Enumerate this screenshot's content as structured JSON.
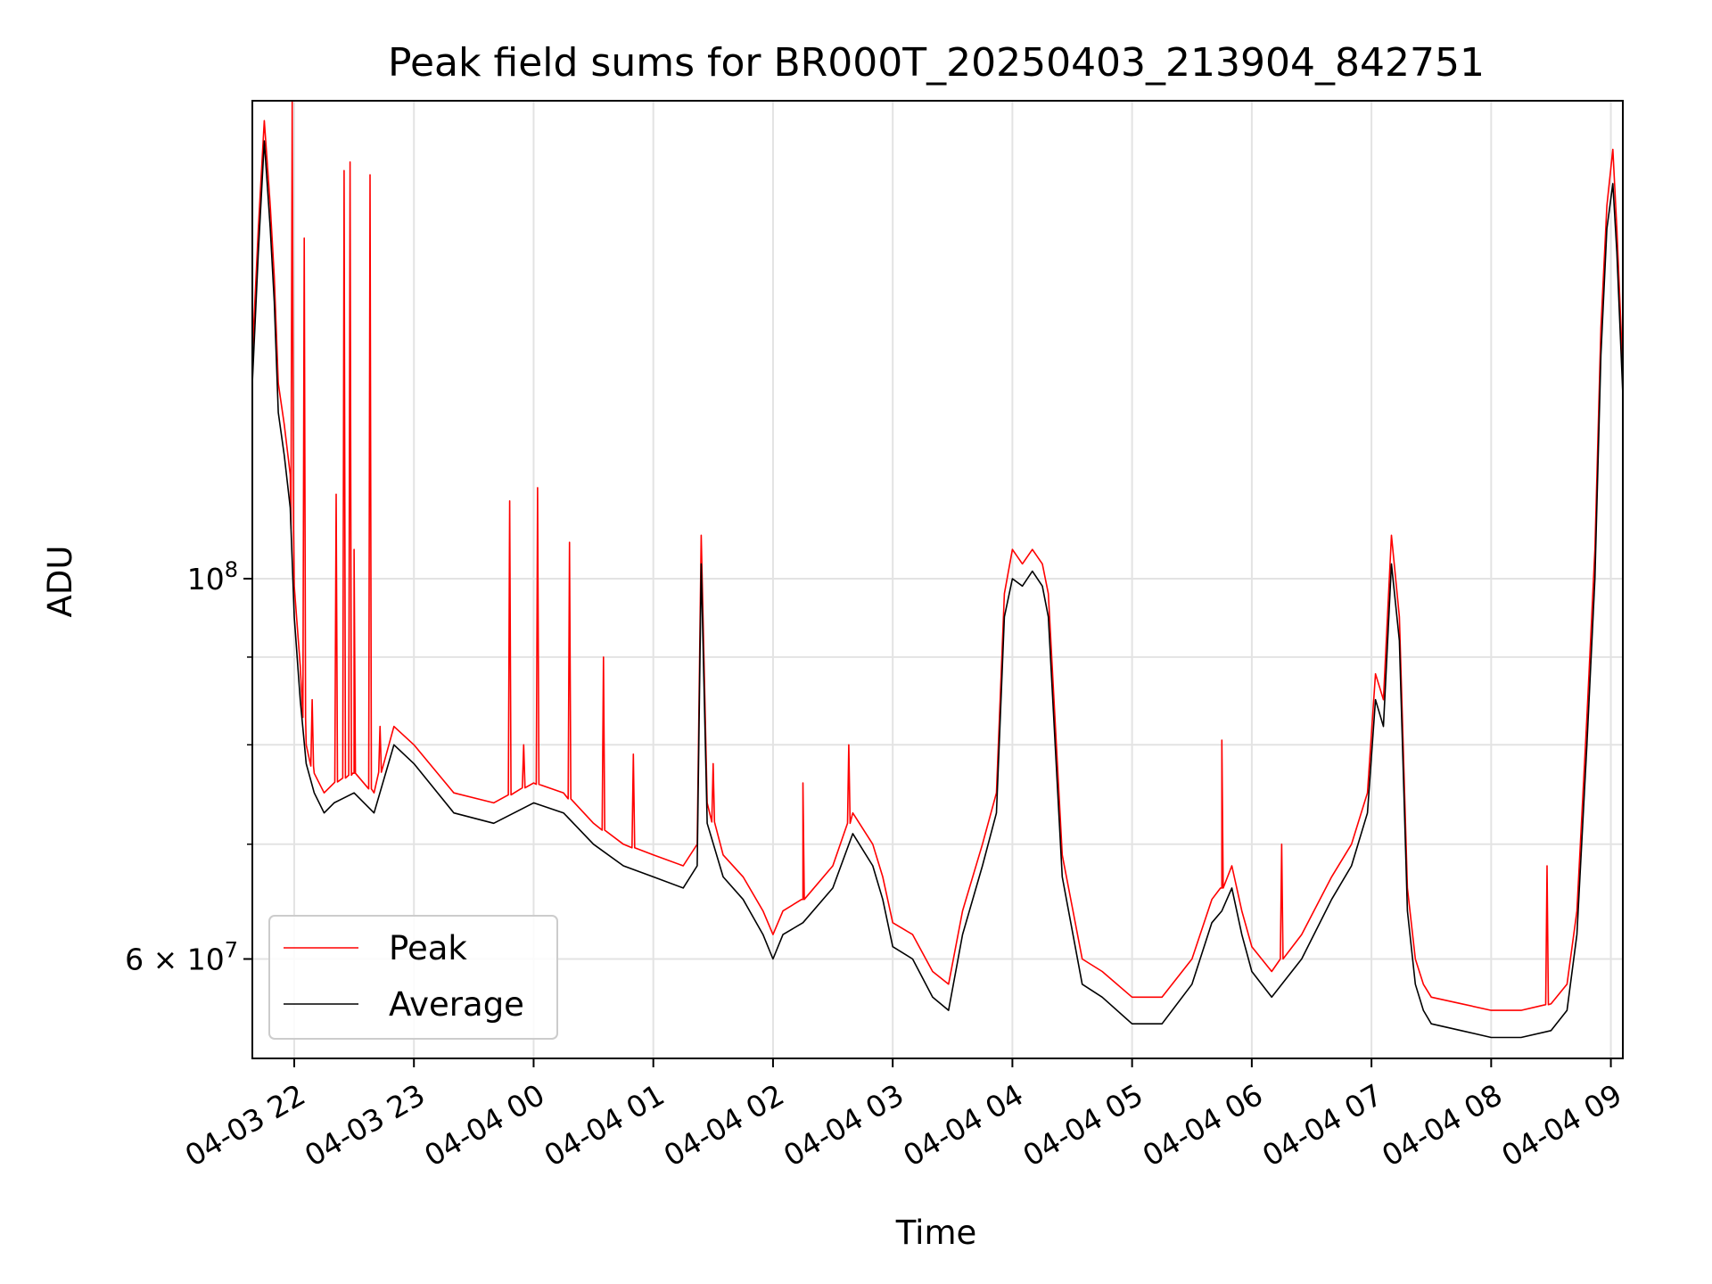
{
  "chart_data": {
    "type": "line",
    "title": "Peak field sums for BR000T_20250403_213904_842751",
    "xlabel": "Time",
    "ylabel": "ADU",
    "y_scale": "log",
    "ylim": [
      52500000,
      190000000
    ],
    "xlim": [
      "2025-04-03 21:39",
      "2025-04-04 09:06"
    ],
    "grid": true,
    "legend_position": "lower-left",
    "x_ticks": [
      "04-03 22",
      "04-03 23",
      "04-04 00",
      "04-04 01",
      "04-04 02",
      "04-04 03",
      "04-04 04",
      "04-04 05",
      "04-04 06",
      "04-04 07",
      "04-04 08",
      "04-04 09"
    ],
    "y_tick_labels": [
      {
        "value": 100000000,
        "mantissa": "10",
        "exponent": "8"
      },
      {
        "value": 60000000,
        "mantissa": "6 × 10",
        "exponent": "7"
      }
    ],
    "y_minor_ticks": [
      70000000,
      80000000,
      90000000
    ],
    "series": [
      {
        "name": "Peak",
        "color": "#ff0000"
      },
      {
        "name": "Average",
        "color": "#000000"
      }
    ],
    "x": [
      "2025-04-03 21:39",
      "2025-04-03 21:42",
      "2025-04-03 21:45",
      "2025-04-03 21:48",
      "2025-04-03 21:50",
      "2025-04-03 21:52",
      "2025-04-03 21:55",
      "2025-04-03 21:58",
      "2025-04-03 22:00",
      "2025-04-03 22:03",
      "2025-04-03 22:06",
      "2025-04-03 22:10",
      "2025-04-03 22:15",
      "2025-04-03 22:20",
      "2025-04-03 22:30",
      "2025-04-03 22:40",
      "2025-04-03 22:50",
      "2025-04-03 23:00",
      "2025-04-03 23:20",
      "2025-04-03 23:40",
      "2025-04-04 00:00",
      "2025-04-04 00:15",
      "2025-04-04 00:30",
      "2025-04-04 00:45",
      "2025-04-04 01:00",
      "2025-04-04 01:15",
      "2025-04-04 01:22",
      "2025-04-04 01:24",
      "2025-04-04 01:27",
      "2025-04-04 01:35",
      "2025-04-04 01:45",
      "2025-04-04 01:55",
      "2025-04-04 02:00",
      "2025-04-04 02:05",
      "2025-04-04 02:15",
      "2025-04-04 02:30",
      "2025-04-04 02:40",
      "2025-04-04 02:50",
      "2025-04-04 02:55",
      "2025-04-04 03:00",
      "2025-04-04 03:10",
      "2025-04-04 03:20",
      "2025-04-04 03:28",
      "2025-04-04 03:35",
      "2025-04-04 03:45",
      "2025-04-04 03:52",
      "2025-04-04 03:56",
      "2025-04-04 04:00",
      "2025-04-04 04:05",
      "2025-04-04 04:10",
      "2025-04-04 04:15",
      "2025-04-04 04:18",
      "2025-04-04 04:25",
      "2025-04-04 04:35",
      "2025-04-04 04:45",
      "2025-04-04 05:00",
      "2025-04-04 05:15",
      "2025-04-04 05:30",
      "2025-04-04 05:40",
      "2025-04-04 05:45",
      "2025-04-04 05:50",
      "2025-04-04 05:55",
      "2025-04-04 06:00",
      "2025-04-04 06:10",
      "2025-04-04 06:25",
      "2025-04-04 06:40",
      "2025-04-04 06:50",
      "2025-04-04 06:58",
      "2025-04-04 07:02",
      "2025-04-04 07:06",
      "2025-04-04 07:10",
      "2025-04-04 07:14",
      "2025-04-04 07:18",
      "2025-04-04 07:22",
      "2025-04-04 07:26",
      "2025-04-04 07:30",
      "2025-04-04 07:45",
      "2025-04-04 08:00",
      "2025-04-04 08:15",
      "2025-04-04 08:30",
      "2025-04-04 08:38",
      "2025-04-04 08:43",
      "2025-04-04 08:48",
      "2025-04-04 08:52",
      "2025-04-04 08:55",
      "2025-04-04 08:58",
      "2025-04-04 09:01",
      "2025-04-04 09:03",
      "2025-04-04 09:06"
    ],
    "average": [
      130000000,
      155000000,
      180000000,
      160000000,
      145000000,
      125000000,
      118000000,
      110000000,
      95000000,
      85000000,
      78000000,
      75000000,
      73000000,
      74000000,
      75000000,
      73000000,
      80000000,
      78000000,
      73000000,
      72000000,
      74000000,
      73000000,
      70000000,
      68000000,
      67000000,
      66000000,
      68000000,
      102000000,
      72000000,
      67000000,
      65000000,
      62000000,
      60000000,
      62000000,
      63000000,
      66000000,
      71000000,
      68000000,
      65000000,
      61000000,
      60000000,
      57000000,
      56000000,
      62000000,
      68000000,
      73000000,
      95000000,
      100000000,
      99000000,
      101000000,
      99000000,
      95000000,
      67000000,
      58000000,
      57000000,
      55000000,
      55000000,
      58000000,
      63000000,
      64000000,
      66000000,
      62000000,
      59000000,
      57000000,
      60000000,
      65000000,
      68000000,
      73000000,
      85000000,
      82000000,
      102000000,
      92000000,
      64000000,
      58000000,
      56000000,
      55000000,
      54500000,
      54000000,
      54000000,
      54500000,
      56000000,
      62000000,
      80000000,
      100000000,
      135000000,
      160000000,
      170000000,
      155000000,
      128000000
    ],
    "peak": [
      135000000,
      160000000,
      185000000,
      165000000,
      150000000,
      130000000,
      123000000,
      115000000,
      99000000,
      89000000,
      80000000,
      77000000,
      75000000,
      76000000,
      77000000,
      75000000,
      82000000,
      80000000,
      75000000,
      74000000,
      76000000,
      75000000,
      72000000,
      70000000,
      69000000,
      68000000,
      70000000,
      106000000,
      74000000,
      69000000,
      67000000,
      64000000,
      62000000,
      64000000,
      65000000,
      68000000,
      73000000,
      70000000,
      67000000,
      63000000,
      62000000,
      59000000,
      58000000,
      64000000,
      70000000,
      75000000,
      98000000,
      104000000,
      102000000,
      104000000,
      102000000,
      98000000,
      69000000,
      60000000,
      59000000,
      57000000,
      57000000,
      60000000,
      65000000,
      66000000,
      68000000,
      64000000,
      61000000,
      59000000,
      62000000,
      67000000,
      70000000,
      75000000,
      88000000,
      85000000,
      106000000,
      95000000,
      66000000,
      60000000,
      58000000,
      57000000,
      56500000,
      56000000,
      56000000,
      56500000,
      58000000,
      64000000,
      83000000,
      104000000,
      140000000,
      165000000,
      178000000,
      160000000,
      132000000
    ],
    "peak_spikes": [
      {
        "x": "2025-04-03 21:59",
        "y": 190000000
      },
      {
        "x": "2025-04-03 22:05",
        "y": 158000000
      },
      {
        "x": "2025-04-03 22:09",
        "y": 85000000
      },
      {
        "x": "2025-04-03 22:21",
        "y": 112000000
      },
      {
        "x": "2025-04-03 22:25",
        "y": 173000000
      },
      {
        "x": "2025-04-03 22:28",
        "y": 175000000
      },
      {
        "x": "2025-04-03 22:30",
        "y": 104000000
      },
      {
        "x": "2025-04-03 22:38",
        "y": 172000000
      },
      {
        "x": "2025-04-03 22:43",
        "y": 82000000
      },
      {
        "x": "2025-04-03 23:48",
        "y": 111000000
      },
      {
        "x": "2025-04-03 23:55",
        "y": 80000000
      },
      {
        "x": "2025-04-04 00:02",
        "y": 113000000
      },
      {
        "x": "2025-04-04 00:18",
        "y": 105000000
      },
      {
        "x": "2025-04-04 00:35",
        "y": 90000000
      },
      {
        "x": "2025-04-04 00:50",
        "y": 79000000
      },
      {
        "x": "2025-04-04 01:30",
        "y": 78000000
      },
      {
        "x": "2025-04-04 02:15",
        "y": 76000000
      },
      {
        "x": "2025-04-04 02:38",
        "y": 80000000
      },
      {
        "x": "2025-04-04 05:45",
        "y": 80500000
      },
      {
        "x": "2025-04-04 06:15",
        "y": 70000000
      },
      {
        "x": "2025-04-04 08:28",
        "y": 68000000
      }
    ]
  }
}
